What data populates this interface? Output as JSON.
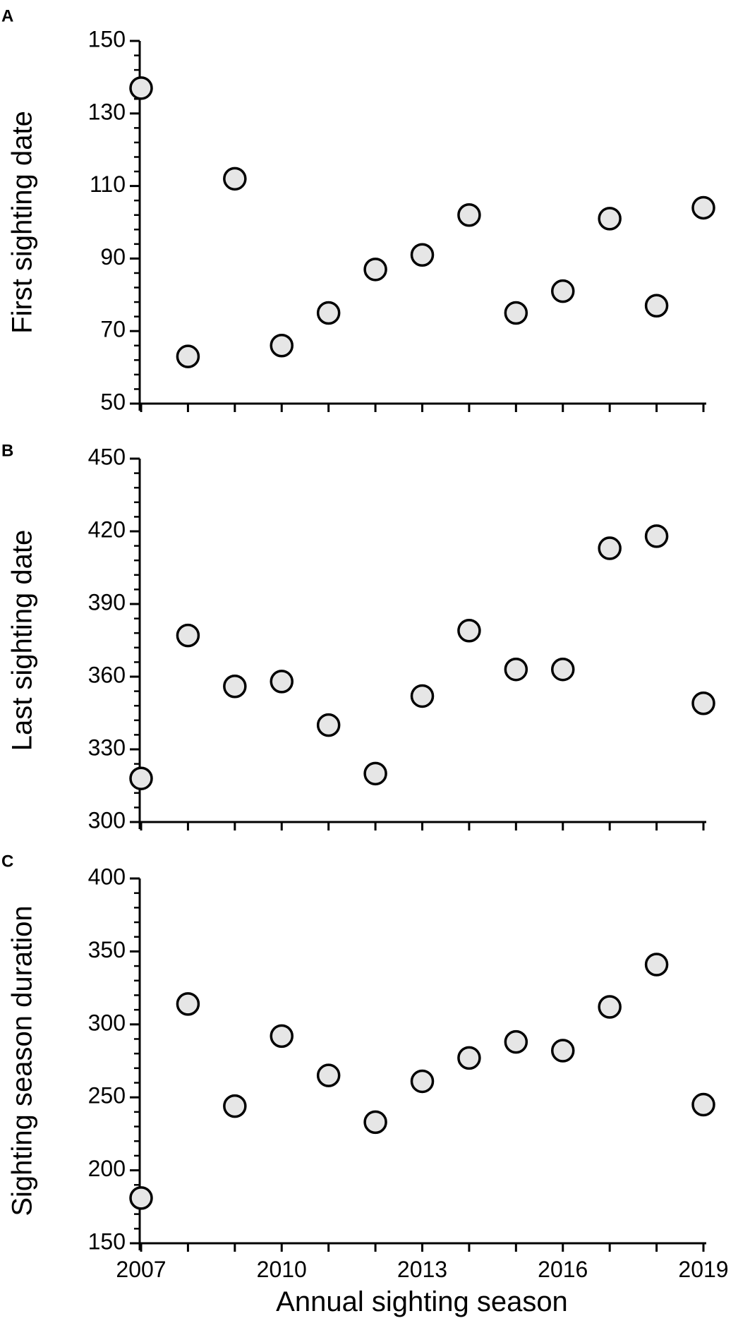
{
  "chart_data": [
    {
      "type": "scatter",
      "panel_label": "A",
      "ylabel": "First sighting date",
      "xlim": [
        2007,
        2019
      ],
      "ylim": [
        50,
        150
      ],
      "yticks": [
        50,
        70,
        90,
        110,
        130,
        150
      ],
      "x": [
        2007,
        2008,
        2009,
        2010,
        2011,
        2012,
        2013,
        2014,
        2015,
        2016,
        2017,
        2018,
        2019
      ],
      "y": [
        137,
        63,
        112,
        66,
        75,
        87,
        91,
        102,
        75,
        81,
        101,
        77,
        104
      ],
      "marker_fill": "#e6e6e6",
      "marker_edge": "#000000",
      "grid": false
    },
    {
      "type": "scatter",
      "panel_label": "B",
      "ylabel": "Last sighting date",
      "xlim": [
        2007,
        2019
      ],
      "ylim": [
        300,
        450
      ],
      "yticks": [
        300,
        330,
        360,
        390,
        420,
        450
      ],
      "x": [
        2007,
        2008,
        2009,
        2010,
        2011,
        2012,
        2013,
        2014,
        2015,
        2016,
        2017,
        2018,
        2019
      ],
      "y": [
        318,
        377,
        356,
        358,
        340,
        320,
        352,
        379,
        363,
        363,
        413,
        418,
        349
      ],
      "marker_fill": "#e6e6e6",
      "marker_edge": "#000000",
      "grid": false
    },
    {
      "type": "scatter",
      "panel_label": "C",
      "ylabel": "Sighting season duration",
      "xlabel": "Annual sighting season",
      "xlim": [
        2007,
        2019
      ],
      "ylim": [
        150,
        400
      ],
      "yticks": [
        150,
        200,
        250,
        300,
        350,
        400
      ],
      "xticks": [
        2007,
        2010,
        2013,
        2016,
        2019
      ],
      "x": [
        2007,
        2008,
        2009,
        2010,
        2011,
        2012,
        2013,
        2014,
        2015,
        2016,
        2017,
        2018,
        2019
      ],
      "y": [
        181,
        314,
        244,
        292,
        265,
        233,
        261,
        277,
        288,
        282,
        312,
        341,
        245
      ],
      "marker_fill": "#e6e6e6",
      "marker_edge": "#000000",
      "grid": false
    }
  ]
}
